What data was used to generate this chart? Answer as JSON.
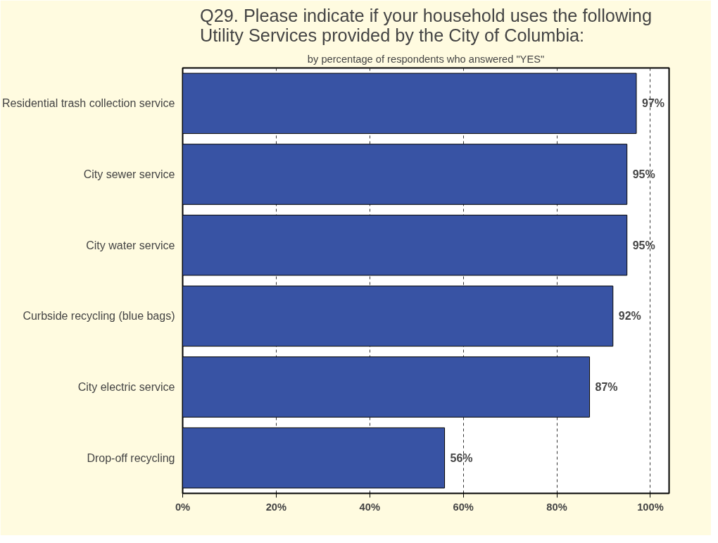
{
  "chart_data": {
    "type": "bar",
    "orientation": "horizontal",
    "title": "Q29. Please indicate if your household uses the following\nUtility Services provided by the City of Columbia:",
    "subtitle": "by percentage of respondents who answered \"YES\"",
    "categories": [
      "Residential trash collection service",
      "City sewer service",
      "City water service",
      "Curbside recycling (blue bags)",
      "City electric service",
      "Drop-off recycling"
    ],
    "values": [
      97,
      95,
      95,
      92,
      87,
      56
    ],
    "value_labels": [
      "97%",
      "95%",
      "95%",
      "92%",
      "87%",
      "56%"
    ],
    "color": "#3853a4",
    "xlim": [
      0,
      104
    ],
    "xticks": [
      {
        "value": 0,
        "label": "0%"
      },
      {
        "value": 20,
        "label": "20%"
      },
      {
        "value": 40,
        "label": "40%"
      },
      {
        "value": 60,
        "label": "60%"
      },
      {
        "value": 80,
        "label": "80%"
      },
      {
        "value": 100,
        "label": "100%"
      }
    ],
    "grid": "x"
  }
}
